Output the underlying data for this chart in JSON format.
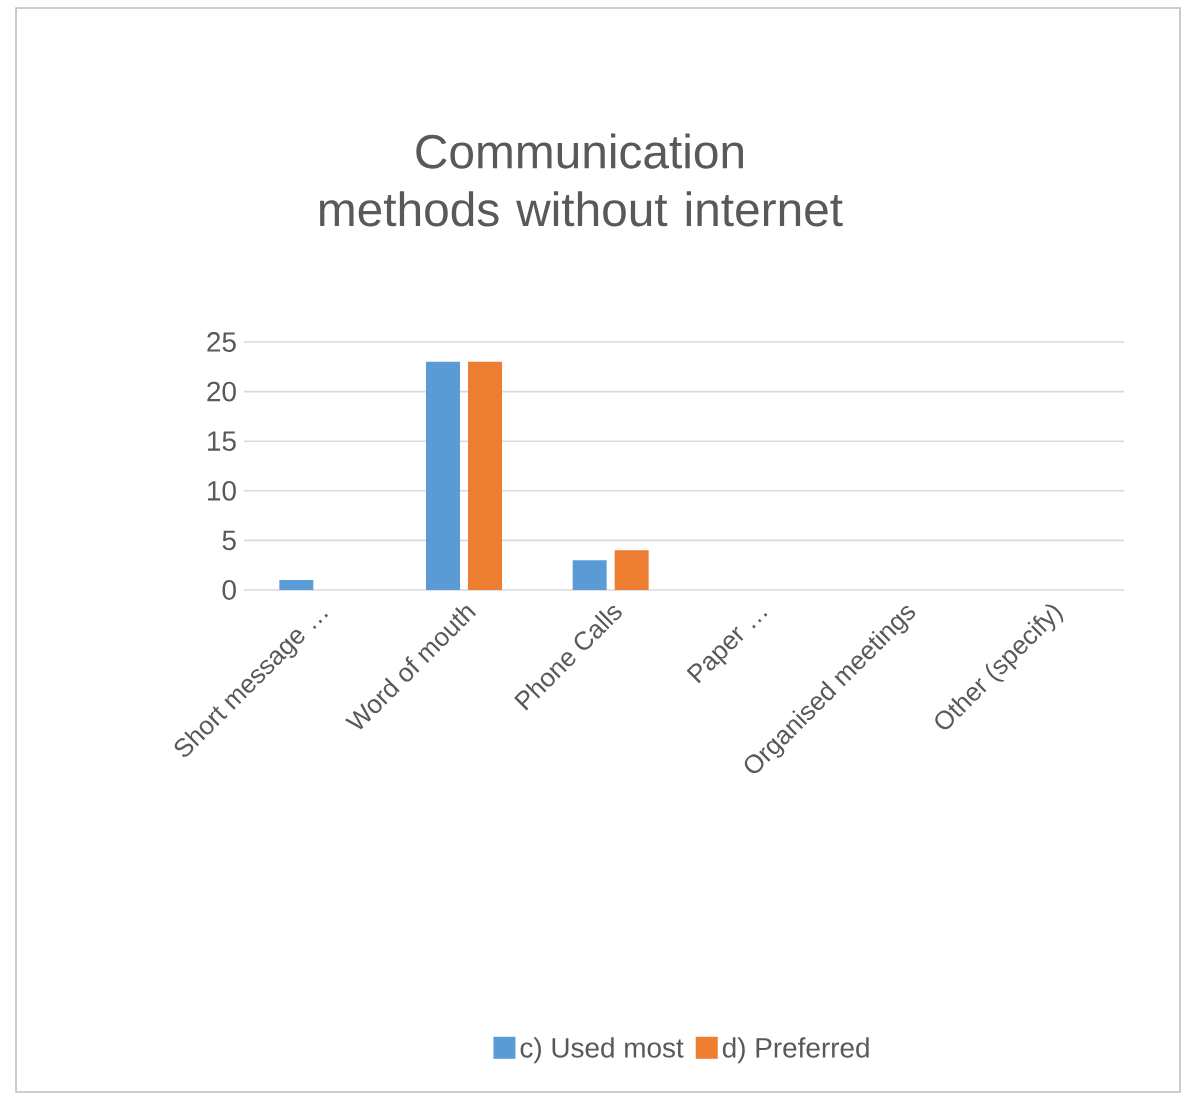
{
  "chart_data": {
    "type": "bar",
    "title": "Communication methods without internet",
    "categories": [
      "Short message …",
      "Word of mouth",
      "Phone Calls",
      "Paper …",
      "Organised meetings",
      "Other (specify)"
    ],
    "series": [
      {
        "name": "c) Used most",
        "color": "#5b9bd5",
        "values": [
          1,
          23,
          3,
          0,
          0,
          0
        ]
      },
      {
        "name": "d) Preferred",
        "color": "#ed7d31",
        "values": [
          0,
          23,
          4,
          0,
          0,
          0
        ]
      }
    ],
    "ylim": [
      0,
      25
    ],
    "yticks": [
      0,
      5,
      10,
      15,
      20,
      25
    ],
    "grid": "y",
    "legend": "bottom"
  }
}
